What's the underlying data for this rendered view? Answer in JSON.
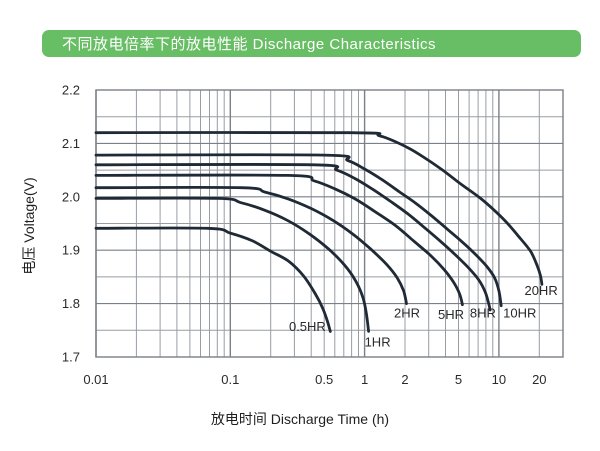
{
  "header": {
    "title": "不同放电倍率下的放电性能 Discharge Characteristics",
    "bg_color": "#68be64",
    "text_color": "#ffffff"
  },
  "chart_data": {
    "type": "line",
    "title": "不同放电倍率下的放电性能 Discharge Characteristics",
    "xlabel": "放电时间  Discharge Time (h)",
    "ylabel": "电压  Voltage(V)",
    "x_axis": {
      "label": "放电时间  Discharge Time (h)",
      "scale": "log",
      "range": [
        0.01,
        30
      ],
      "tick_labels": [
        {
          "t": 0.01,
          "label": "0.01"
        },
        {
          "t": 0.1,
          "label": "0.1"
        },
        {
          "t": 0.5,
          "label": "0.5"
        },
        {
          "t": 1,
          "label": "1"
        },
        {
          "t": 2,
          "label": "2"
        },
        {
          "t": 5,
          "label": "5"
        },
        {
          "t": 10,
          "label": "10"
        },
        {
          "t": 20,
          "label": "20"
        }
      ],
      "major_gridlines": [
        0.01,
        0.1,
        1,
        10
      ],
      "minor_gridlines": [
        0.02,
        0.03,
        0.04,
        0.05,
        0.06,
        0.07,
        0.08,
        0.09,
        0.2,
        0.3,
        0.4,
        0.5,
        0.6,
        0.7,
        0.8,
        0.9,
        2,
        3,
        4,
        5,
        6,
        7,
        8,
        9,
        20
      ]
    },
    "y_axis": {
      "label": "电压  Voltage(V)",
      "scale": "linear",
      "range": [
        1.7,
        2.2
      ],
      "tick_labels": [
        {
          "v": 2.2,
          "label": "2.2"
        },
        {
          "v": 2.1,
          "label": "2.1"
        },
        {
          "v": 2.0,
          "label": "2.0"
        },
        {
          "v": 1.9,
          "label": "1.9"
        },
        {
          "v": 1.8,
          "label": "1.8"
        },
        {
          "v": 1.7,
          "label": "1.7"
        }
      ],
      "major_gridlines": [
        1.7,
        1.8,
        1.9,
        2.0,
        2.1,
        2.2
      ],
      "minor_gridlines": [
        1.75,
        1.85,
        1.95,
        2.05,
        2.15
      ]
    },
    "grid": true,
    "legend_position": "inline-annotations",
    "series": [
      {
        "name": "20HR",
        "points": [
          [
            0.01,
            2.12
          ],
          [
            0.8,
            2.12
          ],
          [
            1.3,
            2.114
          ],
          [
            2.1,
            2.092
          ],
          [
            3.0,
            2.068
          ],
          [
            4.0,
            2.046
          ],
          [
            5.2,
            2.024
          ],
          [
            7.3,
            1.997
          ],
          [
            9.5,
            1.972
          ],
          [
            11.6,
            1.95
          ],
          [
            14.0,
            1.926
          ],
          [
            17.2,
            1.898
          ],
          [
            19.2,
            1.872
          ],
          [
            20.4,
            1.852
          ],
          [
            20.9,
            1.836
          ]
        ]
      },
      {
        "name": "10HR",
        "points": [
          [
            0.01,
            2.078
          ],
          [
            0.5,
            2.078
          ],
          [
            0.75,
            2.068
          ],
          [
            1.0,
            2.052
          ],
          [
            1.35,
            2.032
          ],
          [
            1.8,
            2.01
          ],
          [
            2.4,
            1.988
          ],
          [
            3.1,
            1.966
          ],
          [
            4.1,
            1.94
          ],
          [
            5.3,
            1.916
          ],
          [
            6.7,
            1.892
          ],
          [
            8.1,
            1.87
          ],
          [
            9.3,
            1.848
          ],
          [
            10.0,
            1.824
          ],
          [
            10.4,
            1.796
          ]
        ]
      },
      {
        "name": "8HR",
        "points": [
          [
            0.01,
            2.06
          ],
          [
            0.42,
            2.06
          ],
          [
            0.62,
            2.05
          ],
          [
            0.85,
            2.034
          ],
          [
            1.15,
            2.014
          ],
          [
            1.55,
            1.992
          ],
          [
            2.1,
            1.968
          ],
          [
            2.8,
            1.942
          ],
          [
            3.7,
            1.916
          ],
          [
            4.8,
            1.89
          ],
          [
            6.0,
            1.866
          ],
          [
            7.1,
            1.844
          ],
          [
            7.9,
            1.822
          ],
          [
            8.4,
            1.8
          ],
          [
            8.6,
            1.788
          ]
        ]
      },
      {
        "name": "5HR",
        "points": [
          [
            0.01,
            2.04
          ],
          [
            0.27,
            2.04
          ],
          [
            0.42,
            2.03
          ],
          [
            0.6,
            2.015
          ],
          [
            0.85,
            1.996
          ],
          [
            1.2,
            1.972
          ],
          [
            1.7,
            1.946
          ],
          [
            2.3,
            1.918
          ],
          [
            3.1,
            1.89
          ],
          [
            3.9,
            1.864
          ],
          [
            4.6,
            1.84
          ],
          [
            5.1,
            1.818
          ],
          [
            5.35,
            1.798
          ]
        ]
      },
      {
        "name": "2HR",
        "points": [
          [
            0.01,
            2.017
          ],
          [
            0.12,
            2.017
          ],
          [
            0.18,
            2.009
          ],
          [
            0.27,
            1.996
          ],
          [
            0.4,
            1.978
          ],
          [
            0.58,
            1.956
          ],
          [
            0.82,
            1.93
          ],
          [
            1.1,
            1.903
          ],
          [
            1.45,
            1.874
          ],
          [
            1.75,
            1.848
          ],
          [
            1.95,
            1.824
          ],
          [
            2.05,
            1.8
          ]
        ]
      },
      {
        "name": "1HR",
        "points": [
          [
            0.01,
            1.997
          ],
          [
            0.08,
            1.997
          ],
          [
            0.12,
            1.989
          ],
          [
            0.18,
            1.975
          ],
          [
            0.27,
            1.955
          ],
          [
            0.39,
            1.93
          ],
          [
            0.54,
            1.902
          ],
          [
            0.71,
            1.872
          ],
          [
            0.86,
            1.842
          ],
          [
            0.97,
            1.812
          ],
          [
            1.03,
            1.782
          ],
          [
            1.07,
            1.748
          ]
        ]
      },
      {
        "name": "0.5HR",
        "points": [
          [
            0.01,
            1.941
          ],
          [
            0.068,
            1.941
          ],
          [
            0.1,
            1.932
          ],
          [
            0.145,
            1.918
          ],
          [
            0.2,
            1.898
          ],
          [
            0.27,
            1.88
          ],
          [
            0.35,
            1.852
          ],
          [
            0.43,
            1.818
          ],
          [
            0.49,
            1.79
          ],
          [
            0.53,
            1.766
          ],
          [
            0.555,
            1.748
          ]
        ]
      }
    ],
    "annotations": [
      {
        "text": "0.5HR",
        "t": 0.375,
        "v": 1.757
      },
      {
        "text": "1HR",
        "t": 1.25,
        "v": 1.728
      },
      {
        "text": "2HR",
        "t": 2.07,
        "v": 1.782
      },
      {
        "text": "5HR",
        "t": 4.4,
        "v": 1.78
      },
      {
        "text": "8HR",
        "t": 7.6,
        "v": 1.782
      },
      {
        "text": "10HR",
        "t": 14.3,
        "v": 1.782
      },
      {
        "text": "20HR",
        "t": 20.6,
        "v": 1.825
      }
    ],
    "colors": {
      "curve": "#1f2a36",
      "grid_minor": "#989da4",
      "grid_major": "#7a8088",
      "border": "#7a8088",
      "text": "#2a2a2a"
    }
  }
}
